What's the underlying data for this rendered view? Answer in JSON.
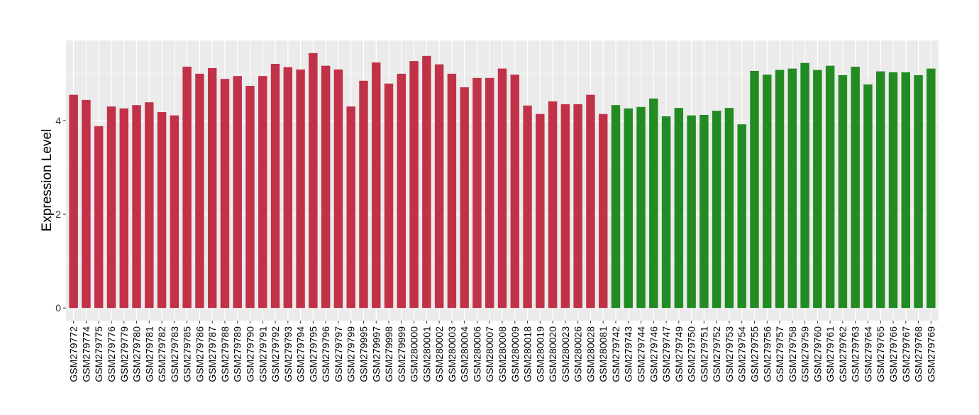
{
  "chart_data": {
    "type": "bar",
    "title": "",
    "xlabel": "",
    "ylabel": "Expression Level",
    "ylim": [
      -0.27,
      5.71
    ],
    "yticks": [
      0,
      2,
      4
    ],
    "grid": true,
    "legend": "none",
    "colors": {
      "group1": "#C13249",
      "group2": "#228B22",
      "panel": "#EBEBEB",
      "grid": "#FFFFFF"
    },
    "categories": [
      "GSM279772",
      "GSM279774",
      "GSM279775",
      "GSM279776",
      "GSM279779",
      "GSM279780",
      "GSM279781",
      "GSM279782",
      "GSM279783",
      "GSM279785",
      "GSM279786",
      "GSM279787",
      "GSM279788",
      "GSM279789",
      "GSM279790",
      "GSM279791",
      "GSM279792",
      "GSM279793",
      "GSM279794",
      "GSM279795",
      "GSM279796",
      "GSM279797",
      "GSM279799",
      "GSM279995",
      "GSM279997",
      "GSM279998",
      "GSM279999",
      "GSM280000",
      "GSM280001",
      "GSM280002",
      "GSM280003",
      "GSM280004",
      "GSM280006",
      "GSM280007",
      "GSM280008",
      "GSM280009",
      "GSM280018",
      "GSM280019",
      "GSM280020",
      "GSM280023",
      "GSM280026",
      "GSM280028",
      "GSM280081",
      "GSM279742",
      "GSM279743",
      "GSM279744",
      "GSM279746",
      "GSM279747",
      "GSM279749",
      "GSM279750",
      "GSM279751",
      "GSM279752",
      "GSM279753",
      "GSM279754",
      "GSM279755",
      "GSM279756",
      "GSM279757",
      "GSM279758",
      "GSM279759",
      "GSM279760",
      "GSM279761",
      "GSM279762",
      "GSM279763",
      "GSM279764",
      "GSM279765",
      "GSM279766",
      "GSM279767",
      "GSM279768",
      "GSM279769"
    ],
    "values": [
      4.55,
      4.44,
      3.88,
      4.3,
      4.26,
      4.33,
      4.39,
      4.18,
      4.11,
      5.15,
      5.0,
      5.12,
      4.89,
      4.95,
      4.74,
      4.95,
      5.21,
      5.14,
      5.09,
      5.44,
      5.17,
      5.09,
      4.3,
      4.85,
      5.24,
      4.79,
      5.0,
      5.27,
      5.38,
      5.2,
      5.0,
      4.71,
      4.91,
      4.91,
      5.11,
      4.98,
      4.32,
      4.14,
      4.41,
      4.35,
      4.35,
      4.55,
      4.14,
      4.33,
      4.26,
      4.29,
      4.47,
      4.09,
      4.27,
      4.11,
      4.12,
      4.21,
      4.27,
      3.92,
      5.06,
      4.98,
      5.08,
      5.11,
      5.23,
      5.08,
      5.17,
      4.97,
      5.15,
      4.77,
      5.05,
      5.03,
      5.03,
      4.97,
      5.11
    ],
    "groups": [
      "group1",
      "group1",
      "group1",
      "group1",
      "group1",
      "group1",
      "group1",
      "group1",
      "group1",
      "group1",
      "group1",
      "group1",
      "group1",
      "group1",
      "group1",
      "group1",
      "group1",
      "group1",
      "group1",
      "group1",
      "group1",
      "group1",
      "group1",
      "group1",
      "group1",
      "group1",
      "group1",
      "group1",
      "group1",
      "group1",
      "group1",
      "group1",
      "group1",
      "group1",
      "group1",
      "group1",
      "group1",
      "group1",
      "group1",
      "group1",
      "group1",
      "group1",
      "group1",
      "group2",
      "group2",
      "group2",
      "group2",
      "group2",
      "group2",
      "group2",
      "group2",
      "group2",
      "group2",
      "group2",
      "group2",
      "group2",
      "group2",
      "group2",
      "group2",
      "group2",
      "group2",
      "group2",
      "group2",
      "group2",
      "group2",
      "group2",
      "group2",
      "group2",
      "group2"
    ]
  }
}
